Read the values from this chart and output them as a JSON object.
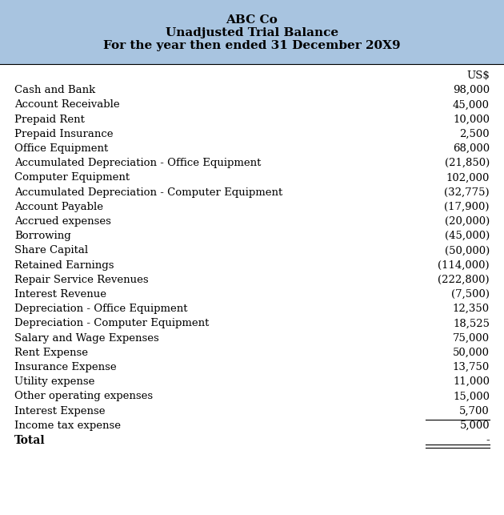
{
  "title_line1": "ABC Co",
  "title_line2": "Unadjusted Trial Balance",
  "title_line3": "For the year then ended 31 December 20X9",
  "header_bg_color": "#a8c4e0",
  "header_text_color": "#000000",
  "body_bg_color": "#ffffff",
  "currency_label": "US$",
  "rows": [
    {
      "label": "Cash and Bank",
      "value": "98,000"
    },
    {
      "label": "Account Receivable",
      "value": "45,000"
    },
    {
      "label": "Prepaid Rent",
      "value": "10,000"
    },
    {
      "label": "Prepaid Insurance",
      "value": "2,500"
    },
    {
      "label": "Office Equipment",
      "value": "68,000"
    },
    {
      "label": "Accumulated Depreciation - Office Equipment",
      "value": "(21,850)"
    },
    {
      "label": "Computer Equipment",
      "value": "102,000"
    },
    {
      "label": "Accumulated Depreciation - Computer Equipment",
      "value": "(32,775)"
    },
    {
      "label": "Account Payable",
      "value": "(17,900)"
    },
    {
      "label": "Accrued expenses",
      "value": "(20,000)"
    },
    {
      "label": "Borrowing",
      "value": "(45,000)"
    },
    {
      "label": "Share Capital",
      "value": "(50,000)"
    },
    {
      "label": "Retained Earnings",
      "value": "(114,000)"
    },
    {
      "label": "Repair Service Revenues",
      "value": "(222,800)"
    },
    {
      "label": "Interest Revenue",
      "value": "(7,500)"
    },
    {
      "label": "Depreciation - Office Equipment",
      "value": "12,350"
    },
    {
      "label": "Depreciation - Computer Equipment",
      "value": "18,525"
    },
    {
      "label": "Salary and Wage Expenses",
      "value": "75,000"
    },
    {
      "label": "Rent Expense",
      "value": "50,000"
    },
    {
      "label": "Insurance Expense",
      "value": "13,750"
    },
    {
      "label": "Utility expense",
      "value": "11,000"
    },
    {
      "label": "Other operating expenses",
      "value": "15,000"
    },
    {
      "label": "Interest Expense",
      "value": "5,700"
    },
    {
      "label": "Income tax expense",
      "value": "5,000"
    }
  ],
  "total_label": "Total",
  "total_value": "-",
  "font_size_title": 11,
  "font_size_body": 9.5,
  "font_size_total": 10
}
